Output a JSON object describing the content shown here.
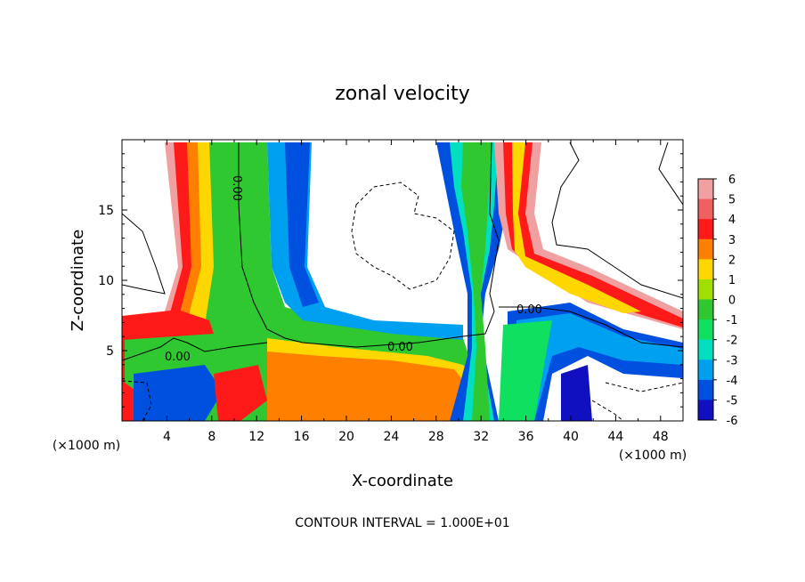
{
  "chart_data": {
    "type": "heatmap",
    "title": "zonal velocity",
    "xlabel": "X-coordinate",
    "ylabel": "Z-coordinate",
    "x_unit": "(×1000 m)",
    "y_unit_left": "(×1000 m)",
    "x_unit_right": "(×1000 m)",
    "xlim": [
      0,
      50
    ],
    "ylim": [
      0,
      20
    ],
    "x_ticks": [
      4,
      8,
      12,
      16,
      20,
      24,
      28,
      32,
      36,
      40,
      44,
      48
    ],
    "y_ticks": [
      5,
      10,
      15
    ],
    "colorbar_levels": [
      6,
      5,
      4,
      3,
      2,
      1,
      0,
      -1,
      -2,
      -3,
      -4,
      -5,
      -6
    ],
    "contour_labels": [
      "0.00",
      "0.00",
      "0.00",
      "0.00"
    ],
    "footer": "CONTOUR INTERVAL = 1.000E+01"
  },
  "colors": {
    "6": "#f0a0a0",
    "5": "#f06060",
    "4": "#ff1a1a",
    "3": "#ff8000",
    "2": "#ffd700",
    "1": "#a0e000",
    "0": "#30c830",
    "-1": "#10e060",
    "-2": "#00e0c0",
    "-3": "#00a0f0",
    "-4": "#0050e0",
    "-5": "#1010c0",
    "-6": "#8010b0"
  }
}
